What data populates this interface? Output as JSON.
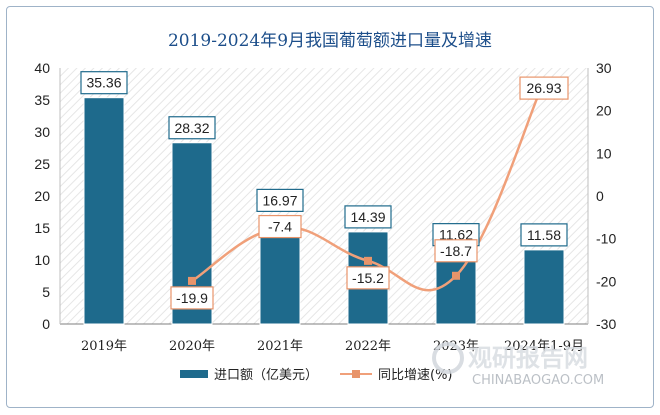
{
  "chart_data": {
    "type": "bar+line",
    "title": "2019-2024年9月我国葡萄额进口量及增速",
    "categories": [
      "2019年",
      "2020年",
      "2021年",
      "2022年",
      "2023年",
      "2024年1-9月"
    ],
    "series": [
      {
        "name": "进口额（亿美元）",
        "type": "bar",
        "axis": "left",
        "color": "#1e6a8c",
        "values": [
          35.36,
          28.32,
          16.97,
          14.39,
          11.62,
          11.58
        ],
        "labels": [
          "35.36",
          "28.32",
          "16.97",
          "14.39",
          "11.62",
          "11.58"
        ]
      },
      {
        "name": "同比增速(%)",
        "type": "line",
        "axis": "right",
        "color": "#f0a07a",
        "marker_color": "#e8946a",
        "values": [
          null,
          -19.9,
          -7.4,
          -15.2,
          -18.7,
          26.93
        ],
        "labels": [
          "",
          "-19.9",
          "-7.4",
          "-15.2",
          "-18.7",
          "26.93"
        ]
      }
    ],
    "y_left": {
      "min": 0,
      "max": 40,
      "ticks": [
        "0",
        "5",
        "10",
        "15",
        "20",
        "25",
        "30",
        "35",
        "40"
      ]
    },
    "y_right": {
      "min": -30,
      "max": 30,
      "ticks": [
        "-30",
        "-20",
        "-10",
        "0",
        "10",
        "20",
        "30"
      ]
    },
    "legend_position": "bottom",
    "grid": false
  },
  "watermark": {
    "name": "观研报告网",
    "url": "CHINABAOGAO.COM"
  }
}
